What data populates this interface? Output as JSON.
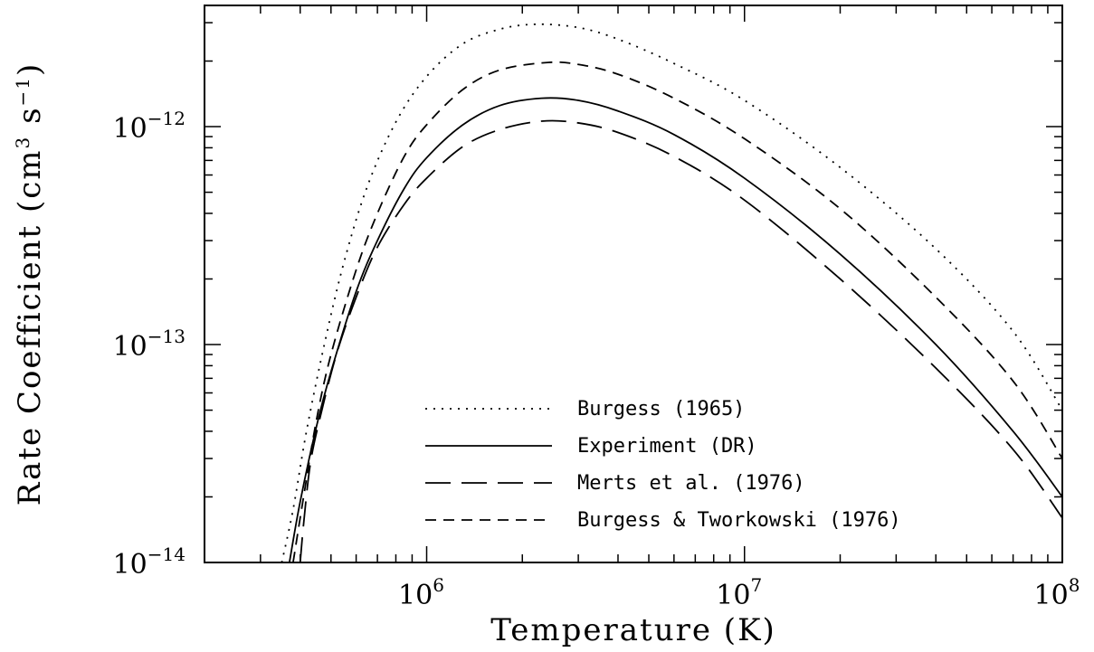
{
  "chart_data": {
    "type": "line",
    "xlabel": "Temperature (K)",
    "ylabel": "Rate Coefficient (cm³ s⁻¹)",
    "ylabel_parts": {
      "before": "Rate Coefficient (cm",
      "sup1": "3",
      "middle": " s",
      "sup2": "−1",
      "after": ")"
    },
    "x_scale": "log",
    "y_scale": "log",
    "xlim": [
      200000,
      100000000
    ],
    "ylim": [
      1e-14,
      3.6e-12
    ],
    "x_ticks": [
      {
        "value": 1000000,
        "base": "10",
        "exp": "6"
      },
      {
        "value": 10000000,
        "base": "10",
        "exp": "7"
      },
      {
        "value": 100000000,
        "base": "10",
        "exp": "8"
      }
    ],
    "y_ticks": [
      {
        "value": 1e-14,
        "base": "10",
        "exp": "−14"
      },
      {
        "value": 1e-13,
        "base": "10",
        "exp": "−13"
      },
      {
        "value": 1e-12,
        "base": "10",
        "exp": "−12"
      }
    ],
    "grid": false,
    "legend_position": "lower-center",
    "series": [
      {
        "name": "Burgess (1965)",
        "dash": "dotted",
        "x": [
          350000,
          380000,
          420000,
          480000,
          550000,
          650000,
          800000,
          1000000,
          1300000,
          1700000,
          2200000,
          3000000,
          4000000,
          6000000,
          10000000,
          20000000,
          40000000,
          70000000,
          100000000
        ],
        "y": [
          1e-14,
          1.75e-14,
          4.1e-14,
          1.05e-13,
          2.4e-13,
          5.3e-13,
          1.05e-12,
          1.7e-12,
          2.4e-12,
          2.8e-12,
          2.95e-12,
          2.85e-12,
          2.52e-12,
          1.95e-12,
          1.32e-12,
          6.5e-13,
          2.75e-13,
          1.15e-13,
          5e-14
        ]
      },
      {
        "name": "Experiment (DR)",
        "dash": "solid",
        "x": [
          370000,
          400000,
          450000,
          500000,
          600000,
          700000,
          850000,
          1000000,
          1300000,
          1700000,
          2300000,
          3000000,
          4000000,
          6000000,
          10000000,
          20000000,
          40000000,
          70000000,
          100000000
        ],
        "y": [
          1e-14,
          1.9e-14,
          4.2e-14,
          7.5e-14,
          1.75e-13,
          3e-13,
          5.2e-13,
          7.2e-13,
          1.02e-12,
          1.25e-12,
          1.35e-12,
          1.32e-12,
          1.18e-12,
          9.2e-13,
          5.8e-13,
          2.6e-13,
          1e-13,
          4e-14,
          2e-14
        ]
      },
      {
        "name": "Merts et al. (1976)",
        "dash": "longdash",
        "x": [
          400000,
          410000,
          430000,
          460000,
          520000,
          600000,
          700000,
          850000,
          1000000,
          1300000,
          1700000,
          2300000,
          3000000,
          4000000,
          6000000,
          10000000,
          20000000,
          40000000,
          70000000,
          100000000
        ],
        "y": [
          1e-14,
          1.5e-14,
          2.8e-14,
          4.5e-14,
          9e-14,
          1.65e-13,
          2.8e-13,
          4.4e-13,
          5.8e-13,
          8.1e-13,
          9.7e-13,
          1.06e-12,
          1.04e-12,
          9.4e-13,
          7.3e-13,
          4.6e-13,
          2e-13,
          7.8e-14,
          3.3e-14,
          1.6e-14
        ]
      },
      {
        "name": "Burgess & Tworkowski (1976)",
        "dash": "dashed",
        "x": [
          380000,
          410000,
          450000,
          500000,
          600000,
          700000,
          850000,
          1000000,
          1300000,
          1700000,
          2400000,
          3000000,
          4000000,
          6000000,
          10000000,
          20000000,
          40000000,
          70000000,
          100000000
        ],
        "y": [
          1e-14,
          2e-14,
          4.5e-14,
          9e-14,
          2.2e-13,
          4e-13,
          7.3e-13,
          1.02e-12,
          1.48e-12,
          1.82e-12,
          1.97e-12,
          1.93e-12,
          1.74e-12,
          1.35e-12,
          8.8e-13,
          4.2e-13,
          1.65e-13,
          6.8e-14,
          3e-14
        ]
      }
    ]
  }
}
